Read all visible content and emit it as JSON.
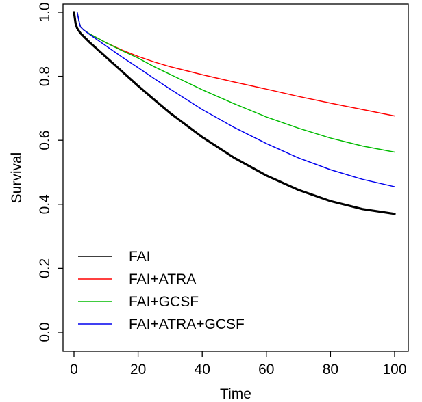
{
  "chart_data": {
    "type": "line",
    "title": "",
    "xlabel": "Time",
    "ylabel": "Survival",
    "xlim": [
      0,
      100
    ],
    "ylim": [
      0,
      1
    ],
    "x_ticks": [
      "0",
      "20",
      "40",
      "60",
      "80",
      "100"
    ],
    "y_ticks": [
      "0.0",
      "0.2",
      "0.4",
      "0.6",
      "0.8",
      "1.0"
    ],
    "grid": false,
    "legend_position": "bottom-left",
    "x": [
      0,
      0.5,
      1,
      2,
      5,
      10,
      15,
      20,
      25,
      30,
      40,
      50,
      60,
      70,
      80,
      90,
      100
    ],
    "series": [
      {
        "name": "FAI",
        "color": "#000000",
        "x": [
          0,
          0.5,
          1,
          2,
          5,
          10,
          15,
          20,
          25,
          30,
          40,
          50,
          60,
          70,
          80,
          90,
          100
        ],
        "values": [
          1.0,
          0.965,
          0.95,
          0.935,
          0.905,
          0.86,
          0.815,
          0.77,
          0.727,
          0.685,
          0.61,
          0.545,
          0.49,
          0.445,
          0.41,
          0.385,
          0.37
        ]
      },
      {
        "name": "FAI+ATRA",
        "color": "#ff0000",
        "x": [
          1,
          1.5,
          2,
          3,
          5,
          10,
          15,
          20,
          25,
          30,
          40,
          50,
          60,
          70,
          80,
          90,
          100
        ],
        "values": [
          1.0,
          0.975,
          0.955,
          0.945,
          0.932,
          0.905,
          0.882,
          0.862,
          0.845,
          0.83,
          0.805,
          0.782,
          0.76,
          0.737,
          0.716,
          0.696,
          0.676
        ]
      },
      {
        "name": "FAI+GCSF",
        "color": "#00bb00",
        "x": [
          1,
          1.5,
          2,
          3,
          5,
          10,
          15,
          20,
          25,
          30,
          40,
          50,
          60,
          70,
          80,
          90,
          100
        ],
        "values": [
          1.0,
          0.975,
          0.955,
          0.945,
          0.932,
          0.905,
          0.88,
          0.857,
          0.83,
          0.806,
          0.758,
          0.714,
          0.673,
          0.638,
          0.607,
          0.582,
          0.563
        ]
      },
      {
        "name": "FAI+ATRA+GCSF",
        "color": "#0000ee",
        "x": [
          1,
          1.5,
          2,
          3,
          5,
          10,
          15,
          20,
          25,
          30,
          40,
          50,
          60,
          70,
          80,
          90,
          100
        ],
        "values": [
          1.0,
          0.975,
          0.955,
          0.945,
          0.93,
          0.895,
          0.86,
          0.827,
          0.793,
          0.76,
          0.696,
          0.64,
          0.59,
          0.545,
          0.508,
          0.478,
          0.455
        ]
      }
    ]
  }
}
